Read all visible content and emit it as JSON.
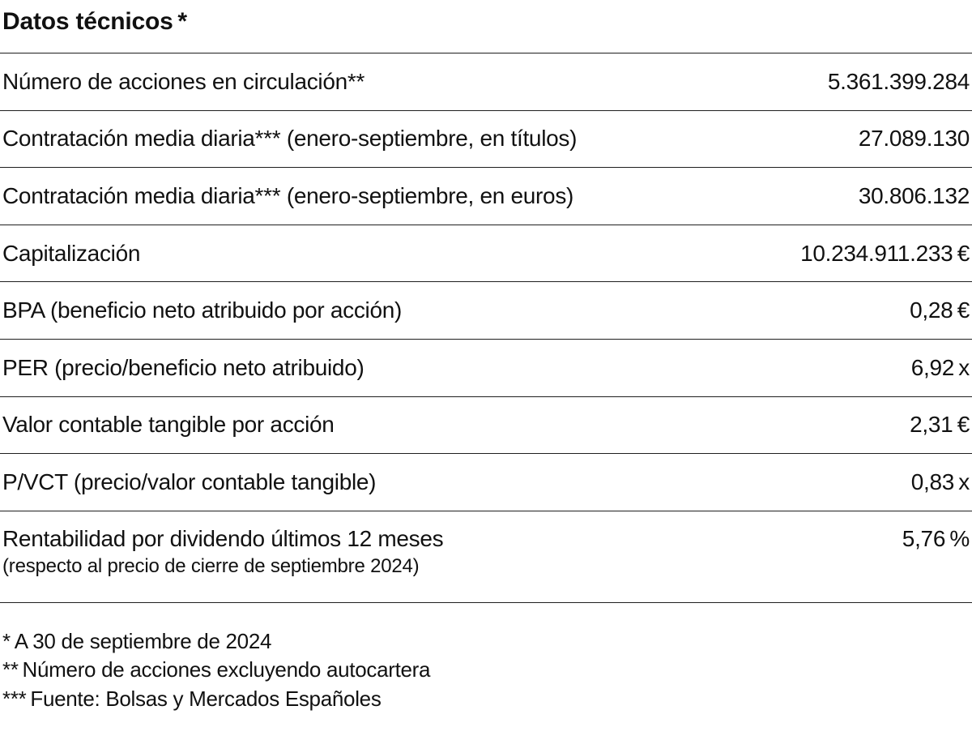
{
  "page": {
    "title": "Datos técnicos *"
  },
  "table": {
    "rows": [
      {
        "label": "Número de acciones en circulación**",
        "value": "5.361.399.284"
      },
      {
        "label": "Contratación media diaria*** (enero-septiembre, en títulos)",
        "value": "27.089.130"
      },
      {
        "label": "Contratación media diaria*** (enero-septiembre, en euros)",
        "value": "30.806.132"
      },
      {
        "label": "Capitalización",
        "value": "10.234.911.233 €"
      },
      {
        "label": "BPA (beneficio neto atribuido por acción)",
        "value": "0,28 €"
      },
      {
        "label": "PER (precio/beneficio neto atribuido)",
        "value": "6,92 x"
      },
      {
        "label": "Valor contable tangible por acción",
        "value": "2,31 €"
      },
      {
        "label": "P/VCT (precio/valor contable tangible)",
        "value": "0,83 x"
      },
      {
        "label": "Rentabilidad por dividendo últimos 12 meses",
        "sublabel": "(respecto al precio de cierre de septiembre 2024)",
        "value": "5,76 %"
      }
    ]
  },
  "footnotes": {
    "note1": "* A 30 de septiembre de 2024",
    "note2": "** Número de acciones excluyendo autocartera",
    "note3": "*** Fuente: Bolsas y Mercados Españoles"
  }
}
